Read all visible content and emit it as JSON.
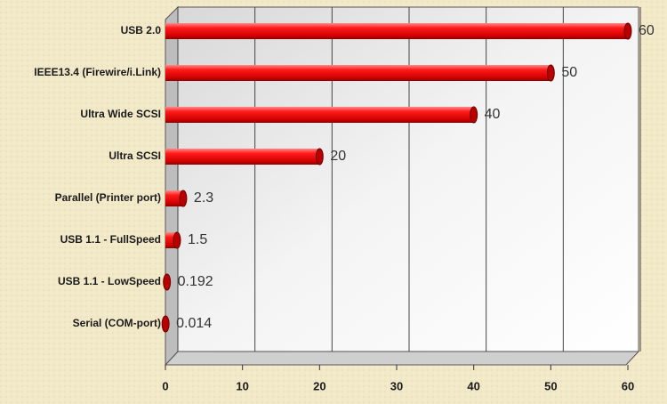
{
  "chart_data": {
    "type": "bar",
    "orientation": "horizontal",
    "categories": [
      "USB 2.0",
      "IEEE13.4 (Firewire/i.Link)",
      "Ultra Wide SCSI",
      "Ultra SCSI",
      "Parallel (Printer port)",
      "USB 1.1 - FullSpeed",
      "USB 1.1 - LowSpeed",
      "Serial (COM-port)"
    ],
    "values": [
      60,
      50,
      40,
      20,
      2.3,
      1.5,
      0.192,
      0.014
    ],
    "color": "#e8141a",
    "xlim": [
      0,
      60
    ],
    "xticks": [
      0,
      10,
      20,
      30,
      40,
      50,
      60
    ],
    "grid": true
  }
}
